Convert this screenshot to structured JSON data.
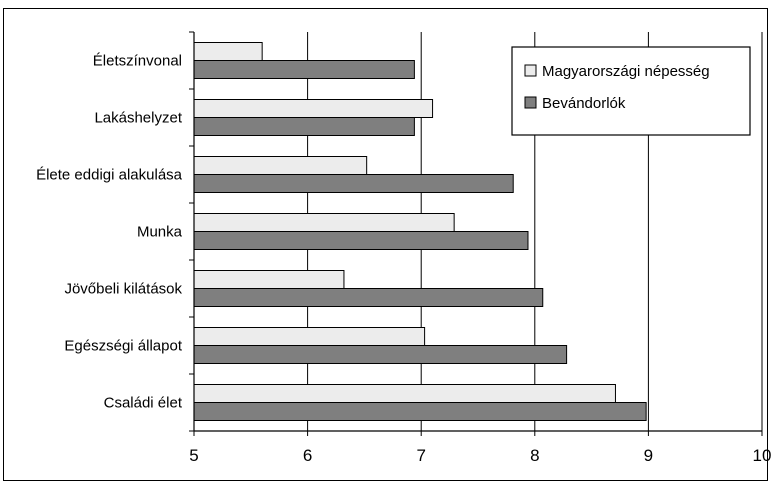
{
  "chart_data": {
    "type": "bar",
    "orientation": "horizontal",
    "title": "",
    "xlabel": "",
    "ylabel": "",
    "categories": [
      "Életszínvonal",
      "Lakáshelyzet",
      "Élete eddigi alakulása",
      "Munka",
      "Jövőbeli kilátások",
      "Egészségi állapot",
      "Családi élet"
    ],
    "series": [
      {
        "name": "Magyarországi népesség",
        "color": "#ececec",
        "values": [
          5.6,
          7.1,
          6.52,
          7.29,
          6.32,
          7.03,
          8.71
        ]
      },
      {
        "name": "Bevándorlók",
        "color": "#7f7f7f",
        "values": [
          6.94,
          6.94,
          7.81,
          7.94,
          8.07,
          8.28,
          8.98
        ]
      }
    ],
    "xlim": [
      5,
      10
    ],
    "xticks": [
      5,
      6,
      7,
      8,
      9,
      10
    ],
    "grid": true,
    "legend_position": "top-right"
  }
}
